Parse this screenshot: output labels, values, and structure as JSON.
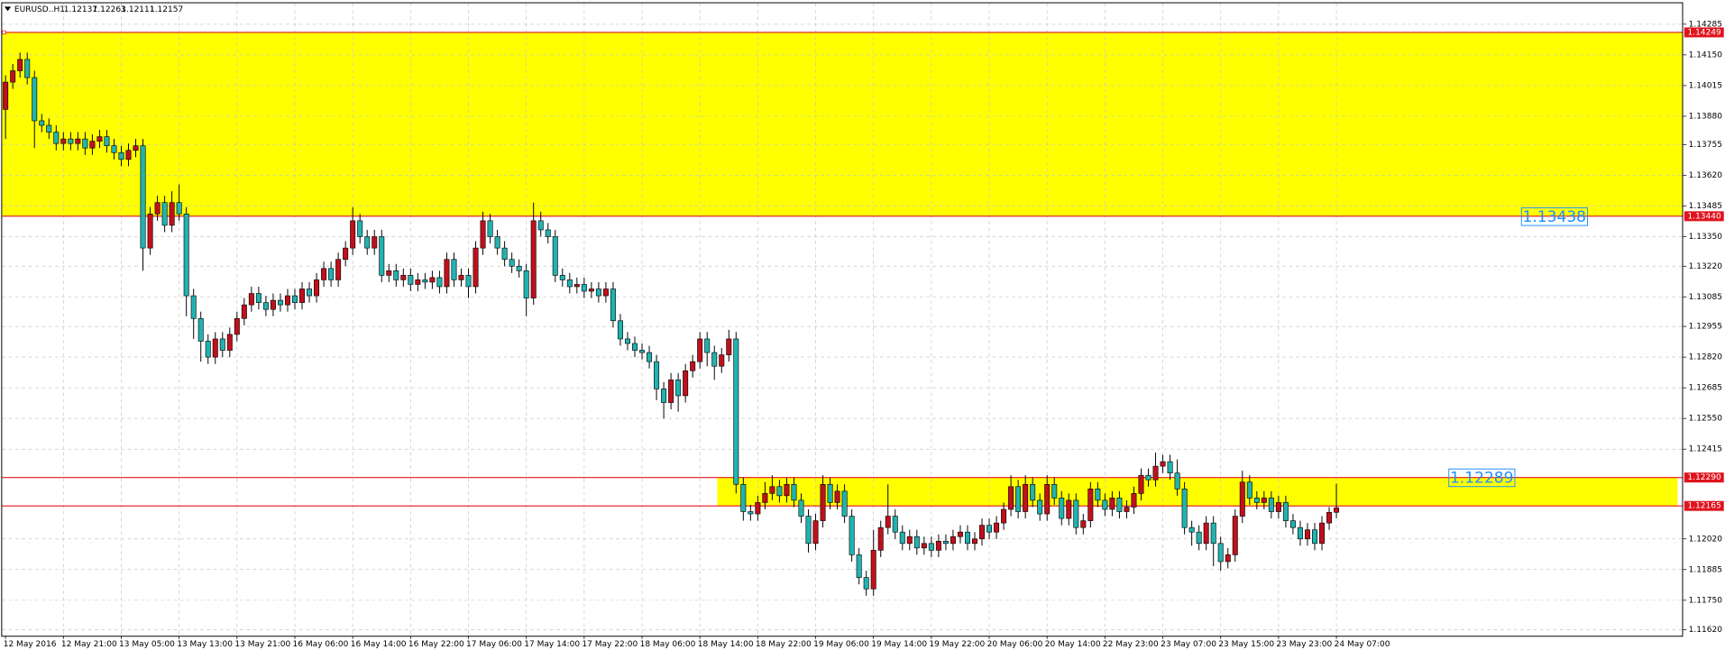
{
  "chart_data": {
    "type": "candlestick",
    "title": "EURUSD..H1",
    "header_values": [
      1.12137,
      1.12263,
      1.12111,
      1.12157
    ],
    "up_color": "#c0101c",
    "down_color": "#22b2b0",
    "zone_color": "#ffff00",
    "level_color": "#e0141e",
    "text_label_color": "#1e90ff",
    "grid": true,
    "ylim": [
      1.11594,
      1.14377
    ],
    "yticks": [
      1.14285,
      {
        "value": 1.1415,
        "label": "1.14150"
      },
      1.14015,
      {
        "value": 1.1388,
        "label": "1.13880"
      },
      1.13755,
      {
        "value": 1.1362,
        "label": "1.13620"
      },
      1.13485,
      {
        "value": 1.1335,
        "label": "1.13350"
      },
      {
        "value": 1.1322,
        "label": "1.13220"
      },
      1.13085,
      1.12955,
      {
        "value": 1.1282,
        "label": "1.12820"
      },
      1.12685,
      {
        "value": 1.1255,
        "label": "1.12550"
      },
      1.12415,
      {
        "value": 1.1202,
        "label": "1.12020"
      },
      1.11885,
      {
        "value": 1.1175,
        "label": "1.11750"
      },
      {
        "value": 1.1162,
        "label": "1.11620"
      }
    ],
    "levels": [
      {
        "value": 1.14249,
        "label": "1.14249"
      },
      {
        "value": 1.1344,
        "label": "1.13440"
      },
      {
        "value": 1.1229,
        "label": "1.12290"
      },
      {
        "value": 1.12165,
        "label": "1.12165"
      }
    ],
    "text_labels": [
      1.13438,
      1.12289
    ],
    "categories": [
      "12 May 2016",
      null,
      null,
      null,
      null,
      null,
      null,
      null,
      "12 May 21:00",
      null,
      null,
      null,
      null,
      null,
      null,
      null,
      "13 May 05:00",
      null,
      null,
      null,
      null,
      null,
      null,
      null,
      "13 May 13:00",
      null,
      null,
      null,
      null,
      null,
      null,
      null,
      "13 May 21:00",
      null,
      null,
      null,
      null,
      null,
      null,
      null,
      "16 May 06:00",
      null,
      null,
      null,
      null,
      null,
      null,
      null,
      "16 May 14:00",
      null,
      null,
      null,
      null,
      null,
      null,
      null,
      "16 May 22:00",
      null,
      null,
      null,
      null,
      null,
      null,
      null,
      "17 May 06:00",
      null,
      null,
      null,
      null,
      null,
      null,
      null,
      "17 May 14:00",
      null,
      null,
      null,
      null,
      null,
      null,
      null,
      "17 May 22:00",
      null,
      null,
      null,
      null,
      null,
      null,
      null,
      "18 May 06:00",
      null,
      null,
      null,
      null,
      null,
      null,
      null,
      "18 May 14:00",
      null,
      null,
      null,
      null,
      null,
      null,
      null,
      "18 May 22:00",
      null,
      null,
      null,
      null,
      null,
      null,
      null,
      "19 May 06:00",
      null,
      null,
      null,
      null,
      null,
      null,
      null,
      "19 May 14:00",
      null,
      null,
      null,
      null,
      null,
      null,
      null,
      "19 May 22:00",
      null,
      null,
      null,
      null,
      null,
      null,
      null,
      "20 May 06:00",
      null,
      null,
      null,
      null,
      null,
      null,
      null,
      "20 May 14:00",
      null,
      null,
      null,
      null,
      null,
      null,
      null,
      "22 May 23:00",
      null,
      null,
      null,
      null,
      null,
      null,
      null,
      "23 May 07:00",
      null,
      null,
      null,
      null,
      null,
      null,
      null,
      "23 May 15:00",
      null,
      null,
      null,
      null,
      null,
      null,
      null,
      "23 May 23:00",
      null,
      null,
      null,
      null,
      null,
      null,
      null,
      "24 May 07:00"
    ],
    "ohlc": [
      [
        1.1391,
        1.1406,
        1.1378,
        1.1403
      ],
      [
        1.1403,
        1.1411,
        1.14,
        1.1408
      ],
      [
        1.1408,
        1.1416,
        1.1405,
        1.1413
      ],
      [
        1.1413,
        1.1416,
        1.1402,
        1.1405
      ],
      [
        1.1405,
        1.1408,
        1.1374,
        1.1386
      ],
      [
        1.1386,
        1.1389,
        1.1381,
        1.1384
      ],
      [
        1.1384,
        1.1387,
        1.1378,
        1.1381
      ],
      [
        1.1381,
        1.1384,
        1.1373,
        1.1376
      ],
      [
        1.1376,
        1.1381,
        1.1373,
        1.1378
      ],
      [
        1.1378,
        1.1381,
        1.1373,
        1.1376
      ],
      [
        1.1376,
        1.1381,
        1.1373,
        1.1378
      ],
      [
        1.1378,
        1.1381,
        1.1371,
        1.1374
      ],
      [
        1.1374,
        1.138,
        1.1371,
        1.1377
      ],
      [
        1.1377,
        1.1382,
        1.1374,
        1.1379
      ],
      [
        1.1379,
        1.1382,
        1.1372,
        1.1375
      ],
      [
        1.1375,
        1.1378,
        1.1369,
        1.1372
      ],
      [
        1.1372,
        1.1375,
        1.1366,
        1.1369
      ],
      [
        1.1369,
        1.1376,
        1.1366,
        1.1373
      ],
      [
        1.1373,
        1.1378,
        1.137,
        1.1375
      ],
      [
        1.1375,
        1.1378,
        1.132,
        1.133
      ],
      [
        1.133,
        1.1348,
        1.1327,
        1.1345
      ],
      [
        1.1345,
        1.1353,
        1.1342,
        1.135
      ],
      [
        1.135,
        1.1353,
        1.1337,
        1.134
      ],
      [
        1.134,
        1.1355,
        1.1337,
        1.135
      ],
      [
        1.135,
        1.1358,
        1.1342,
        1.1345
      ],
      [
        1.1345,
        1.1348,
        1.13,
        1.1309
      ],
      [
        1.1309,
        1.1312,
        1.129,
        1.1299
      ],
      [
        1.1299,
        1.1302,
        1.128,
        1.1289
      ],
      [
        1.1289,
        1.1292,
        1.1279,
        1.1282
      ],
      [
        1.1282,
        1.1293,
        1.1279,
        1.129
      ],
      [
        1.129,
        1.1293,
        1.1282,
        1.1285
      ],
      [
        1.1285,
        1.1295,
        1.1282,
        1.1292
      ],
      [
        1.1292,
        1.1302,
        1.1289,
        1.1299
      ],
      [
        1.1299,
        1.1308,
        1.1296,
        1.1305
      ],
      [
        1.1305,
        1.1313,
        1.1302,
        1.131
      ],
      [
        1.131,
        1.1313,
        1.1303,
        1.1306
      ],
      [
        1.1306,
        1.1309,
        1.13,
        1.1303
      ],
      [
        1.1303,
        1.131,
        1.13,
        1.1307
      ],
      [
        1.1307,
        1.131,
        1.1302,
        1.1305
      ],
      [
        1.1305,
        1.1312,
        1.1302,
        1.1309
      ],
      [
        1.1309,
        1.1312,
        1.1303,
        1.1306
      ],
      [
        1.1306,
        1.1315,
        1.1303,
        1.1312
      ],
      [
        1.1312,
        1.1315,
        1.1306,
        1.1309
      ],
      [
        1.1309,
        1.1319,
        1.1306,
        1.1316
      ],
      [
        1.1316,
        1.1324,
        1.1313,
        1.1321
      ],
      [
        1.1321,
        1.1324,
        1.1313,
        1.1316
      ],
      [
        1.1316,
        1.1328,
        1.1313,
        1.1325
      ],
      [
        1.1325,
        1.1333,
        1.1322,
        1.133
      ],
      [
        1.133,
        1.1348,
        1.1327,
        1.1342
      ],
      [
        1.1342,
        1.1345,
        1.1332,
        1.1335
      ],
      [
        1.1335,
        1.1338,
        1.1327,
        1.133
      ],
      [
        1.133,
        1.1338,
        1.1327,
        1.1335
      ],
      [
        1.1335,
        1.1338,
        1.1315,
        1.1318
      ],
      [
        1.1318,
        1.1323,
        1.1315,
        1.132
      ],
      [
        1.132,
        1.1323,
        1.1313,
        1.1316
      ],
      [
        1.1316,
        1.1321,
        1.1313,
        1.1318
      ],
      [
        1.1318,
        1.1321,
        1.1311,
        1.1314
      ],
      [
        1.1314,
        1.1319,
        1.1311,
        1.1316
      ],
      [
        1.1316,
        1.1319,
        1.1312,
        1.1315
      ],
      [
        1.1315,
        1.132,
        1.1312,
        1.1317
      ],
      [
        1.1317,
        1.132,
        1.131,
        1.1313
      ],
      [
        1.1313,
        1.1328,
        1.131,
        1.1325
      ],
      [
        1.1325,
        1.1328,
        1.1313,
        1.1316
      ],
      [
        1.1316,
        1.1321,
        1.1313,
        1.1318
      ],
      [
        1.1318,
        1.1321,
        1.1308,
        1.1313
      ],
      [
        1.1313,
        1.1333,
        1.131,
        1.133
      ],
      [
        1.133,
        1.1346,
        1.1327,
        1.1342
      ],
      [
        1.1342,
        1.1345,
        1.1332,
        1.1335
      ],
      [
        1.1335,
        1.1338,
        1.1327,
        1.133
      ],
      [
        1.133,
        1.1333,
        1.1322,
        1.1325
      ],
      [
        1.1325,
        1.1328,
        1.1319,
        1.1322
      ],
      [
        1.1322,
        1.1325,
        1.1317,
        1.132
      ],
      [
        1.132,
        1.1323,
        1.13,
        1.1308
      ],
      [
        1.1308,
        1.135,
        1.1305,
        1.1342
      ],
      [
        1.1342,
        1.1346,
        1.1335,
        1.1338
      ],
      [
        1.1338,
        1.1341,
        1.1332,
        1.1335
      ],
      [
        1.1335,
        1.1338,
        1.1315,
        1.1318
      ],
      [
        1.1318,
        1.1321,
        1.1313,
        1.1316
      ],
      [
        1.1316,
        1.1319,
        1.131,
        1.1313
      ],
      [
        1.1313,
        1.1317,
        1.131,
        1.1314
      ],
      [
        1.1314,
        1.1317,
        1.1308,
        1.1311
      ],
      [
        1.1311,
        1.1315,
        1.1308,
        1.1312
      ],
      [
        1.1312,
        1.1315,
        1.1306,
        1.1309
      ],
      [
        1.1309,
        1.1315,
        1.1306,
        1.1312
      ],
      [
        1.1312,
        1.1315,
        1.1295,
        1.1298
      ],
      [
        1.1298,
        1.1301,
        1.1287,
        1.129
      ],
      [
        1.129,
        1.1293,
        1.1285,
        1.1288
      ],
      [
        1.1288,
        1.1291,
        1.1282,
        1.1285
      ],
      [
        1.1285,
        1.1288,
        1.1281,
        1.1284
      ],
      [
        1.1284,
        1.1287,
        1.1277,
        1.128
      ],
      [
        1.128,
        1.1283,
        1.1263,
        1.1268
      ],
      [
        1.1268,
        1.1271,
        1.1255,
        1.1262
      ],
      [
        1.1262,
        1.1275,
        1.1259,
        1.1272
      ],
      [
        1.1272,
        1.1275,
        1.1258,
        1.1265
      ],
      [
        1.1265,
        1.1279,
        1.1262,
        1.1276
      ],
      [
        1.1276,
        1.1283,
        1.1273,
        1.128
      ],
      [
        1.128,
        1.1293,
        1.1277,
        1.129
      ],
      [
        1.129,
        1.1293,
        1.1278,
        1.1284
      ],
      [
        1.1284,
        1.1287,
        1.1272,
        1.1278
      ],
      [
        1.1278,
        1.1286,
        1.1275,
        1.1283
      ],
      [
        1.1283,
        1.1294,
        1.128,
        1.129
      ],
      [
        1.129,
        1.1293,
        1.1222,
        1.1226
      ],
      [
        1.1226,
        1.1229,
        1.121,
        1.1214
      ],
      [
        1.1214,
        1.1217,
        1.121,
        1.1213
      ],
      [
        1.1213,
        1.1221,
        1.121,
        1.1218
      ],
      [
        1.1218,
        1.1227,
        1.1215,
        1.1222
      ],
      [
        1.1222,
        1.123,
        1.1219,
        1.1225
      ],
      [
        1.1225,
        1.1228,
        1.1218,
        1.1221
      ],
      [
        1.1221,
        1.1229,
        1.1218,
        1.1226
      ],
      [
        1.1226,
        1.1229,
        1.1216,
        1.1219
      ],
      [
        1.1219,
        1.1222,
        1.1209,
        1.1212
      ],
      [
        1.1212,
        1.1215,
        1.1196,
        1.12
      ],
      [
        1.12,
        1.1213,
        1.1197,
        1.121
      ],
      [
        1.121,
        1.123,
        1.1207,
        1.1226
      ],
      [
        1.1226,
        1.1229,
        1.1215,
        1.1218
      ],
      [
        1.1218,
        1.1226,
        1.1215,
        1.1223
      ],
      [
        1.1223,
        1.1226,
        1.1209,
        1.1212
      ],
      [
        1.1212,
        1.1215,
        1.1192,
        1.1195
      ],
      [
        1.1195,
        1.1198,
        1.1182,
        1.1185
      ],
      [
        1.1185,
        1.1188,
        1.1177,
        1.118
      ],
      [
        1.118,
        1.1206,
        1.1177,
        1.1197
      ],
      [
        1.1197,
        1.121,
        1.1194,
        1.1207
      ],
      [
        1.1207,
        1.1226,
        1.1204,
        1.1212
      ],
      [
        1.1212,
        1.1215,
        1.1202,
        1.1205
      ],
      [
        1.1205,
        1.1208,
        1.1197,
        1.12
      ],
      [
        1.12,
        1.1206,
        1.1197,
        1.1203
      ],
      [
        1.1203,
        1.1206,
        1.1195,
        1.1198
      ],
      [
        1.1198,
        1.1203,
        1.1195,
        1.12
      ],
      [
        1.12,
        1.1203,
        1.1194,
        1.1197
      ],
      [
        1.1197,
        1.1204,
        1.1194,
        1.1201
      ],
      [
        1.1201,
        1.1204,
        1.1197,
        1.12
      ],
      [
        1.12,
        1.1206,
        1.1197,
        1.1203
      ],
      [
        1.1203,
        1.1208,
        1.12,
        1.1205
      ],
      [
        1.1205,
        1.1208,
        1.1197,
        1.12
      ],
      [
        1.12,
        1.1205,
        1.1197,
        1.1202
      ],
      [
        1.1202,
        1.1211,
        1.1199,
        1.1208
      ],
      [
        1.1208,
        1.1211,
        1.1202,
        1.1205
      ],
      [
        1.1205,
        1.1212,
        1.1202,
        1.1209
      ],
      [
        1.1209,
        1.1218,
        1.1206,
        1.1215
      ],
      [
        1.1215,
        1.123,
        1.1212,
        1.1225
      ],
      [
        1.1225,
        1.1228,
        1.1211,
        1.1214
      ],
      [
        1.1214,
        1.123,
        1.1211,
        1.1226
      ],
      [
        1.1226,
        1.1229,
        1.1216,
        1.1219
      ],
      [
        1.1219,
        1.1222,
        1.121,
        1.1213
      ],
      [
        1.1213,
        1.123,
        1.121,
        1.1226
      ],
      [
        1.1226,
        1.1229,
        1.1217,
        1.122
      ],
      [
        1.122,
        1.1223,
        1.1208,
        1.1211
      ],
      [
        1.1211,
        1.1222,
        1.1208,
        1.1219
      ],
      [
        1.1219,
        1.1222,
        1.1204,
        1.1207
      ],
      [
        1.1207,
        1.1213,
        1.1204,
        1.121
      ],
      [
        1.121,
        1.1227,
        1.1207,
        1.1224
      ],
      [
        1.1224,
        1.1227,
        1.1216,
        1.1219
      ],
      [
        1.1219,
        1.1222,
        1.1212,
        1.1215
      ],
      [
        1.1215,
        1.1223,
        1.1212,
        1.122
      ],
      [
        1.122,
        1.1223,
        1.1211,
        1.1214
      ],
      [
        1.1214,
        1.1219,
        1.1211,
        1.1216
      ],
      [
        1.1216,
        1.1225,
        1.1213,
        1.1222
      ],
      [
        1.1222,
        1.1233,
        1.1219,
        1.123
      ],
      [
        1.123,
        1.1233,
        1.1225,
        1.1228
      ],
      [
        1.1228,
        1.124,
        1.1225,
        1.1234
      ],
      [
        1.1234,
        1.1239,
        1.1231,
        1.1236
      ],
      [
        1.1236,
        1.1239,
        1.1228,
        1.1231
      ],
      [
        1.1231,
        1.1237,
        1.1221,
        1.1224
      ],
      [
        1.1224,
        1.1227,
        1.1204,
        1.1207
      ],
      [
        1.1207,
        1.121,
        1.1199,
        1.1205
      ],
      [
        1.1205,
        1.1208,
        1.1197,
        1.12
      ],
      [
        1.12,
        1.1212,
        1.1197,
        1.1209
      ],
      [
        1.1209,
        1.1212,
        1.119,
        1.12
      ],
      [
        1.12,
        1.1203,
        1.1188,
        1.1192
      ],
      [
        1.1192,
        1.1198,
        1.1189,
        1.1195
      ],
      [
        1.1195,
        1.1215,
        1.1192,
        1.1212
      ],
      [
        1.1212,
        1.1232,
        1.1209,
        1.1227
      ],
      [
        1.1227,
        1.123,
        1.1217,
        1.122
      ],
      [
        1.122,
        1.1223,
        1.1215,
        1.1218
      ],
      [
        1.1218,
        1.1223,
        1.1215,
        1.122
      ],
      [
        1.122,
        1.1223,
        1.1211,
        1.1214
      ],
      [
        1.1214,
        1.1221,
        1.1211,
        1.1218
      ],
      [
        1.1218,
        1.1221,
        1.1207,
        1.121
      ],
      [
        1.121,
        1.1213,
        1.1204,
        1.1207
      ],
      [
        1.1207,
        1.121,
        1.1199,
        1.1202
      ],
      [
        1.1202,
        1.1209,
        1.1199,
        1.1206
      ],
      [
        1.1206,
        1.1209,
        1.1197,
        1.12
      ],
      [
        1.12,
        1.1212,
        1.1197,
        1.1209
      ],
      [
        1.1209,
        1.1216,
        1.1206,
        1.12137
      ],
      [
        1.12137,
        1.12263,
        1.12111,
        1.12157
      ]
    ]
  }
}
